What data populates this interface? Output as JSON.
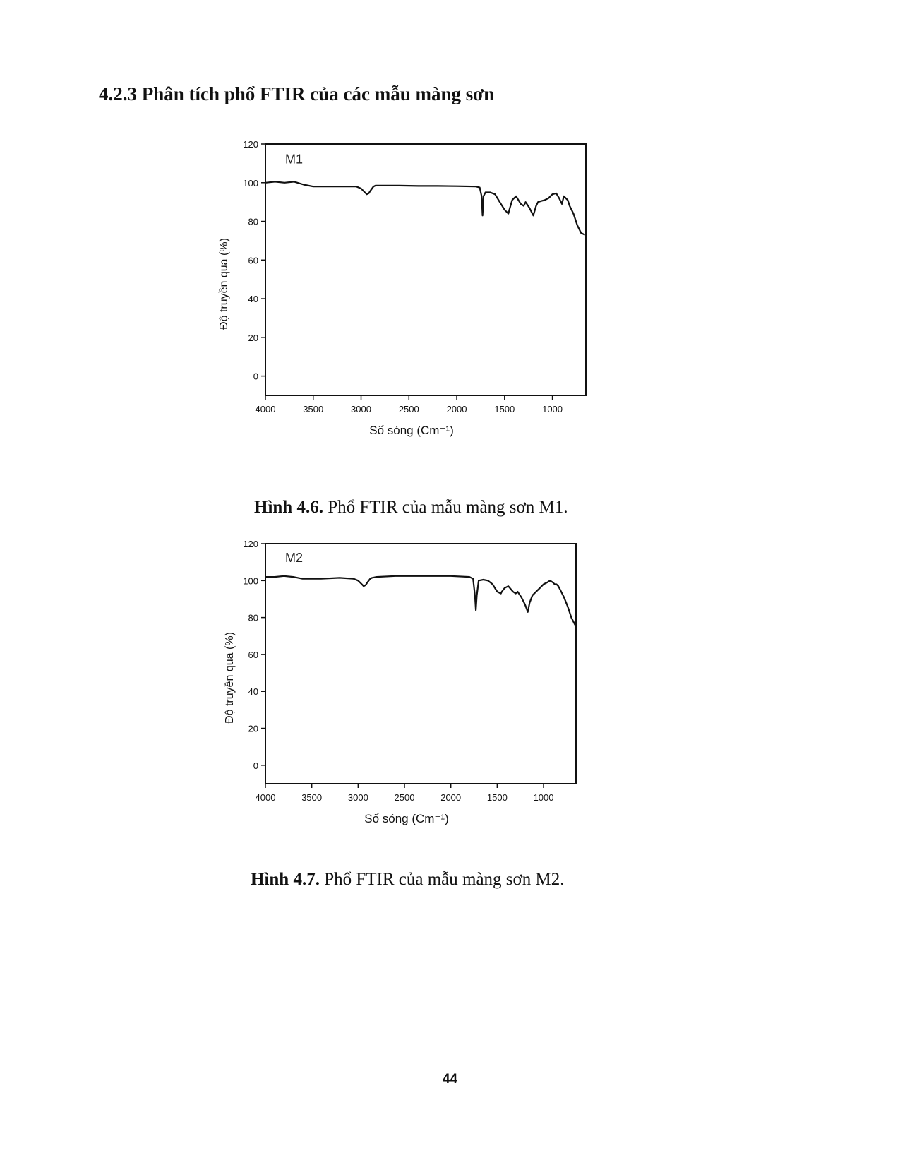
{
  "section_heading": "4.2.3 Phân tích phổ FTIR của các mẫu màng sơn",
  "figures": [
    {
      "number": "Hình 4.6.",
      "text": "Phổ FTIR của mẫu màng sơn M1."
    },
    {
      "number": "Hình 4.7.",
      "text": "Phổ FTIR của mẫu màng sơn M2."
    }
  ],
  "page_number": "44",
  "chart_data": [
    {
      "type": "line",
      "title": "",
      "label": "M1",
      "xlabel": "Số sóng (Cm⁻¹)",
      "ylabel": "Độ truyền qua (%)",
      "xlim": [
        4000,
        650
      ],
      "ylim": [
        -10,
        120
      ],
      "x_reversed": true,
      "x_ticks": [
        4000,
        3500,
        3000,
        2500,
        2000,
        1500,
        1000
      ],
      "y_ticks": [
        0,
        20,
        40,
        60,
        80,
        100,
        120
      ],
      "grid": false,
      "line_color": "#111111",
      "series": [
        {
          "x": [
            4000,
            3900,
            3800,
            3700,
            3600,
            3500,
            3400,
            3200,
            3050,
            3000,
            2960,
            2940,
            2920,
            2900,
            2870,
            2850,
            2800,
            2600,
            2400,
            2200,
            2000,
            1800,
            1760,
            1740,
            1730,
            1720,
            1700,
            1650,
            1600,
            1550,
            1500,
            1460,
            1450,
            1420,
            1380,
            1330,
            1300,
            1280,
            1240,
            1200,
            1170,
            1150,
            1120,
            1080,
            1040,
            1000,
            960,
            930,
            900,
            880,
            860,
            840,
            820,
            780,
            740,
            700,
            660
          ],
          "y": [
            100,
            100.5,
            100,
            100.5,
            99,
            98,
            98,
            98,
            98,
            97,
            95,
            94,
            94.5,
            96,
            98,
            98.5,
            98.5,
            98.5,
            98.3,
            98.3,
            98.2,
            98,
            97.5,
            93,
            83,
            93,
            95,
            95,
            94,
            90,
            86,
            84,
            86,
            91,
            93,
            89,
            88,
            90,
            87,
            83,
            88,
            90,
            90.5,
            91,
            92,
            94,
            94.5,
            92,
            89,
            93,
            92,
            91,
            88,
            84,
            78,
            74,
            73
          ]
        }
      ]
    },
    {
      "type": "line",
      "title": "",
      "label": "M2",
      "xlabel": "Số sóng (Cm⁻¹)",
      "ylabel": "Độ truyền qua (%)",
      "xlim": [
        4000,
        650
      ],
      "ylim": [
        -10,
        120
      ],
      "x_reversed": true,
      "x_ticks": [
        4000,
        3500,
        3000,
        2500,
        2000,
        1500,
        1000
      ],
      "y_ticks": [
        0,
        20,
        40,
        60,
        80,
        100,
        120
      ],
      "grid": false,
      "line_color": "#111111",
      "series": [
        {
          "x": [
            4000,
            3900,
            3800,
            3700,
            3600,
            3500,
            3400,
            3200,
            3050,
            3000,
            2960,
            2940,
            2920,
            2900,
            2870,
            2850,
            2800,
            2600,
            2400,
            2200,
            2000,
            1800,
            1760,
            1740,
            1730,
            1720,
            1700,
            1650,
            1600,
            1550,
            1500,
            1460,
            1450,
            1420,
            1380,
            1330,
            1300,
            1280,
            1240,
            1200,
            1170,
            1150,
            1120,
            1080,
            1040,
            1000,
            960,
            930,
            900,
            880,
            860,
            840,
            820,
            780,
            740,
            700,
            660
          ],
          "y": [
            102,
            102,
            102.5,
            102,
            101,
            101,
            101,
            101.5,
            101,
            100,
            98,
            97,
            97.5,
            99,
            101,
            101.5,
            102,
            102.5,
            102.5,
            102.5,
            102.5,
            102,
            101,
            92,
            84,
            92,
            100,
            100.5,
            100,
            98,
            94,
            93,
            94,
            96,
            97,
            94,
            93,
            94,
            91,
            87,
            83,
            88,
            92,
            94,
            96,
            98,
            99,
            100,
            99,
            98,
            98,
            97,
            95,
            91,
            86,
            80,
            76
          ]
        }
      ]
    }
  ]
}
